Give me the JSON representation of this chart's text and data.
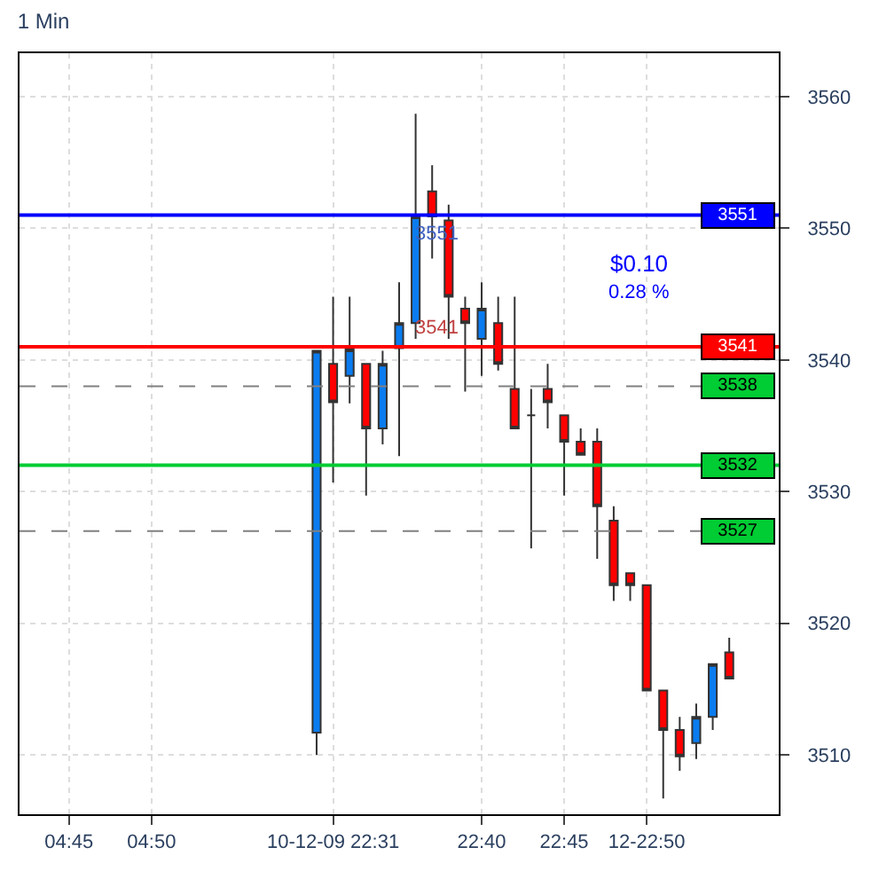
{
  "chart_data": {
    "type": "candlestick",
    "title": "1 Min",
    "categories": [
      null,
      null,
      "04:45",
      null,
      null,
      null,
      null,
      "04:50",
      null,
      null,
      null,
      null,
      null,
      null,
      null,
      null,
      null,
      null,
      "10-12-09 22:31",
      null,
      null,
      null,
      null,
      null,
      null,
      null,
      null,
      "22:40",
      null,
      null,
      null,
      null,
      "22:45",
      null,
      null,
      null,
      null,
      "12-22:50",
      null,
      null,
      null,
      null,
      null,
      null,
      null
    ],
    "ohlc": [
      null,
      null,
      null,
      null,
      null,
      null,
      null,
      null,
      null,
      null,
      null,
      null,
      null,
      null,
      null,
      null,
      null,
      [
        3511.7,
        3540.7,
        3510.0,
        3540.7
      ],
      [
        3539.7,
        3544.8,
        3530.7,
        3536.8
      ],
      [
        3538.8,
        3544.8,
        3536.7,
        3540.8
      ],
      [
        3539.7,
        3539.7,
        3529.7,
        3534.8
      ],
      [
        3534.8,
        3540.7,
        3533.6,
        3539.7
      ],
      [
        3540.9,
        3545.9,
        3532.7,
        3542.8
      ],
      [
        3542.8,
        3558.7,
        3541.6,
        3550.9
      ],
      [
        3552.8,
        3554.8,
        3547.7,
        3550.9
      ],
      [
        3550.6,
        3551.8,
        3541.6,
        3544.8
      ],
      [
        3543.9,
        3544.8,
        3537.6,
        3542.8
      ],
      [
        3541.6,
        3545.9,
        3538.8,
        3543.9
      ],
      [
        3542.8,
        3544.8,
        3539.2,
        3539.7
      ],
      [
        3537.8,
        3544.8,
        3534.8,
        3534.8
      ],
      [
        3535.8,
        3537.8,
        3525.7,
        3535.8
      ],
      [
        3537.8,
        3539.7,
        3534.8,
        3536.8
      ],
      [
        3535.8,
        3535.8,
        3529.7,
        3533.8
      ],
      [
        3533.8,
        3534.8,
        3532.8,
        3532.8
      ],
      [
        3533.8,
        3534.8,
        3524.9,
        3528.9
      ],
      [
        3527.8,
        3528.9,
        3521.7,
        3522.9
      ],
      [
        3523.8,
        3523.8,
        3521.7,
        3522.9
      ],
      [
        3522.9,
        3522.9,
        3514.9,
        3514.9
      ],
      [
        3514.9,
        3514.9,
        3506.7,
        3511.9
      ],
      [
        3511.9,
        3512.9,
        3508.8,
        3509.9
      ],
      [
        3510.9,
        3513.9,
        3509.7,
        3512.9
      ],
      [
        3512.9,
        3516.9,
        3511.9,
        3516.9
      ],
      [
        3517.8,
        3518.9,
        3515.8,
        3515.8
      ],
      null,
      null
    ],
    "colors": [
      null,
      null,
      null,
      null,
      null,
      null,
      null,
      null,
      null,
      null,
      null,
      null,
      null,
      null,
      null,
      null,
      null,
      "#0a7cf0",
      "#ff0000",
      "#0a7cf0",
      "#ff0000",
      "#0a7cf0",
      "#0a7cf0",
      "#0a7cf0",
      "#ff0000",
      "#ff0000",
      "#ff0000",
      "#0a7cf0",
      "#ff0000",
      "#ff0000",
      "#333333",
      "#ff0000",
      "#ff0000",
      "#ff0000",
      "#ff0000",
      "#ff0000",
      "#ff0000",
      "#ff0000",
      "#ff0000",
      "#ff0000",
      "#0a7cf0",
      "#0a7cf0",
      "#ff0000",
      null,
      null
    ],
    "ylim": [
      3505.5,
      3563.3
    ],
    "yticks": [
      3510,
      3520,
      3530,
      3540,
      3550,
      3560
    ],
    "ref_lines": [
      {
        "axis": "y",
        "value": 3551,
        "label": "3551",
        "color": "#0000ff",
        "line_style": "solid"
      },
      {
        "axis": "y",
        "value": 3541,
        "label": "3541",
        "color": "#ff0000",
        "line_style": "solid"
      },
      {
        "axis": "y",
        "value": 3538,
        "label": "3538",
        "color": "#808080",
        "line_style": "dashed"
      },
      {
        "axis": "y",
        "value": 3532,
        "label": "3532",
        "color": "#00cc33",
        "line_style": "solid"
      },
      {
        "axis": "y",
        "value": 3527,
        "label": "3527",
        "color": "#808080",
        "line_style": "dashed"
      }
    ],
    "annotations": [
      "$0.10",
      "0.28 %",
      {
        "text": "3551",
        "y": 3551
      },
      {
        "text": "3541",
        "y": 3541
      }
    ],
    "grid": true
  }
}
